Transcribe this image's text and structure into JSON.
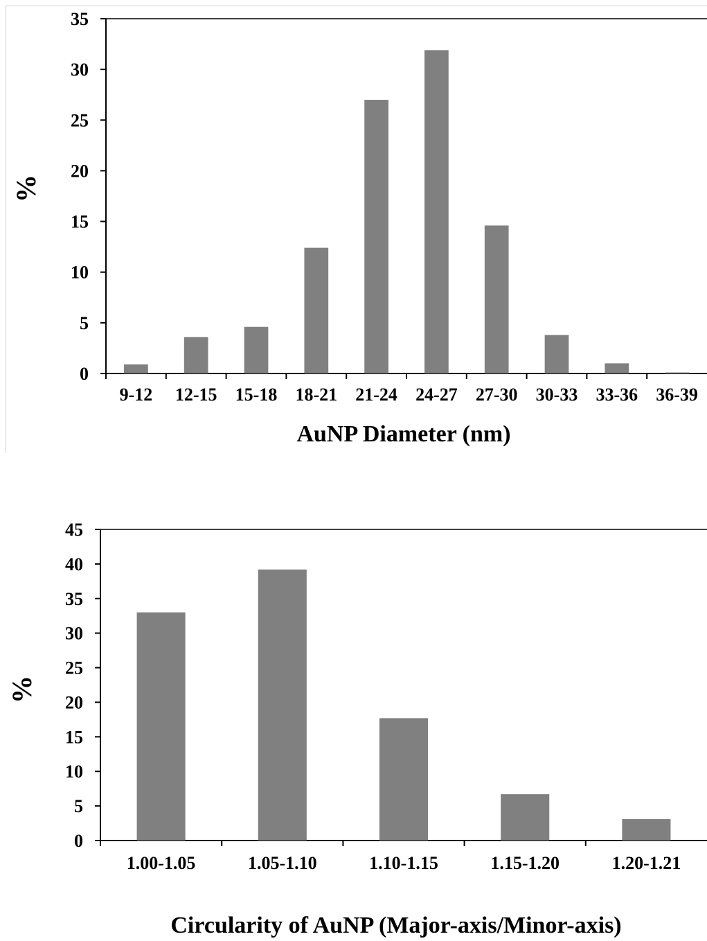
{
  "chart_data": [
    {
      "type": "bar",
      "categories": [
        "9-12",
        "12-15",
        "15-18",
        "18-21",
        "21-24",
        "24-27",
        "27-30",
        "30-33",
        "33-36",
        "36-39"
      ],
      "values": [
        0.9,
        3.6,
        4.6,
        12.4,
        27.0,
        31.9,
        14.6,
        3.8,
        1.0,
        0.1
      ],
      "xlabel": "AuNP Diameter (nm)",
      "ylabel": "%",
      "ylim": [
        0,
        35
      ],
      "yticks": [
        "0",
        "5",
        "10",
        "15",
        "20",
        "25",
        "30",
        "35"
      ],
      "bar_color": "#808080",
      "grid": false,
      "legend": "none"
    },
    {
      "type": "bar",
      "categories": [
        "1.00-1.05",
        "1.05-1.10",
        "1.10-1.15",
        "1.15-1.20",
        "1.20-1.21"
      ],
      "values": [
        33.0,
        39.2,
        17.7,
        6.7,
        3.1
      ],
      "xlabel": "Circularity of AuNP (Major-axis/Minor-axis)",
      "ylabel": "%",
      "ylim": [
        0,
        45
      ],
      "yticks": [
        "0",
        "5",
        "10",
        "15",
        "20",
        "25",
        "30",
        "35",
        "40",
        "45"
      ],
      "bar_color": "#808080",
      "grid": false,
      "legend": "none"
    }
  ]
}
